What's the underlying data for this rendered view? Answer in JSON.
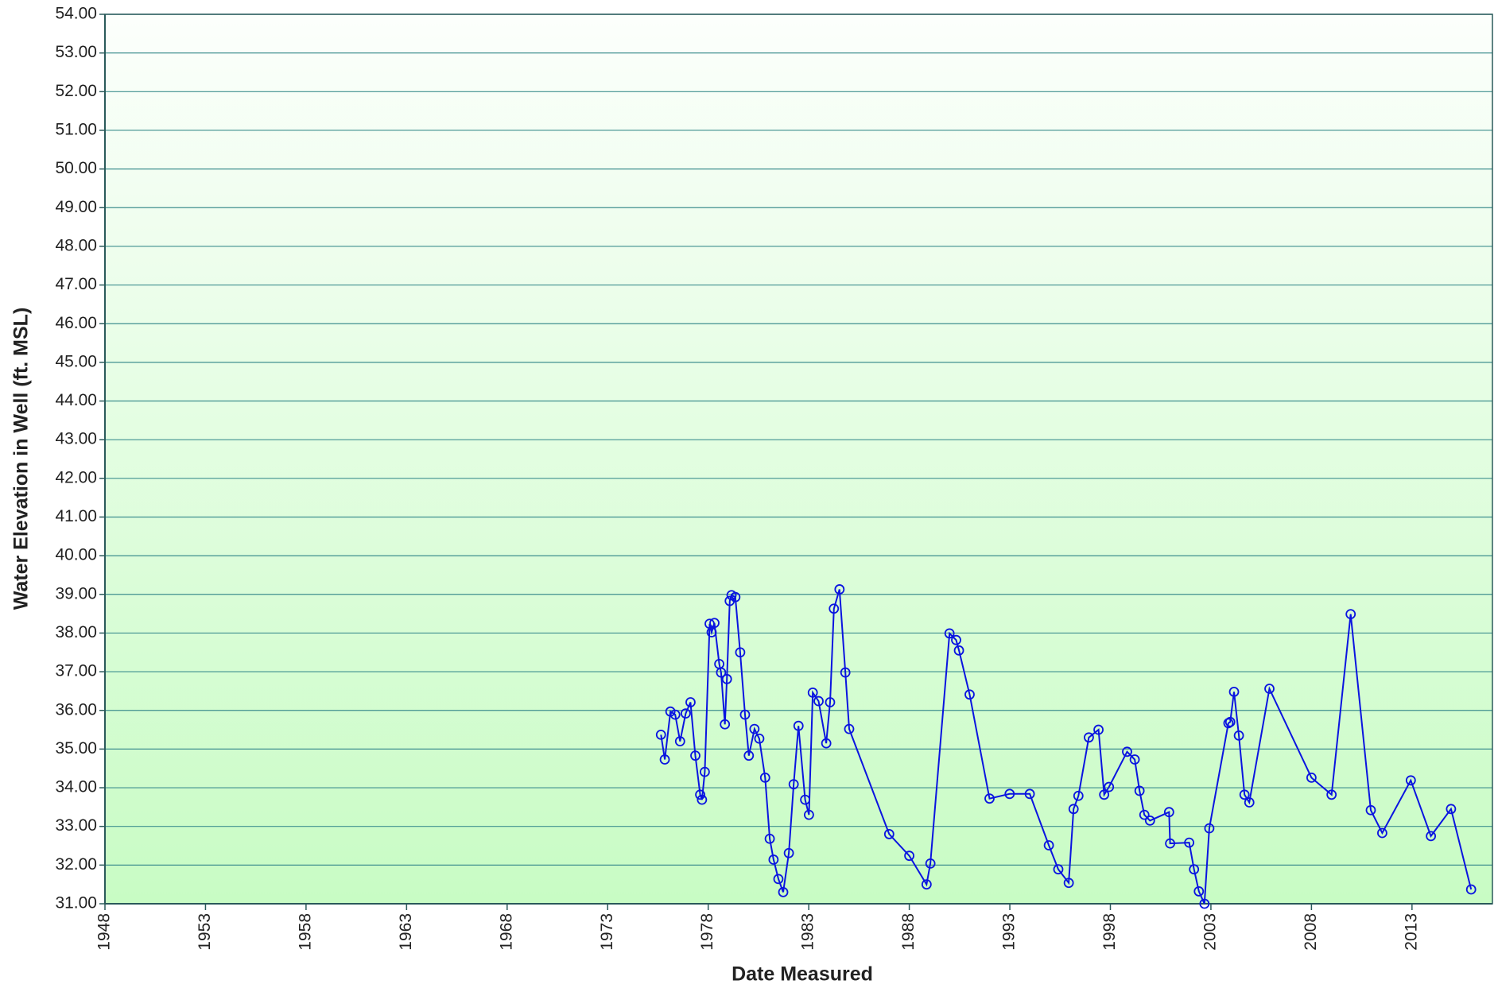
{
  "chart_data": {
    "type": "line",
    "x_label": "Date Measured",
    "y_label": "Water Elevation in Well (ft. MSL)",
    "xlim": [
      1948,
      2017
    ],
    "ylim": [
      31,
      54
    ],
    "xticks": [
      1948,
      1953,
      1958,
      1963,
      1968,
      1973,
      1978,
      1983,
      1988,
      1993,
      1998,
      2003,
      2008,
      2013
    ],
    "yticks": [
      {
        "value": 31,
        "label": "31.00"
      },
      {
        "value": 32,
        "label": "32.00"
      },
      {
        "value": 33,
        "label": "33.00"
      },
      {
        "value": 34,
        "label": "34.00"
      },
      {
        "value": 35,
        "label": "35.00"
      },
      {
        "value": 36,
        "label": "36.00"
      },
      {
        "value": 37,
        "label": "37.00"
      },
      {
        "value": 38,
        "label": "38.00"
      },
      {
        "value": 39,
        "label": "39.00"
      },
      {
        "value": 40,
        "label": "40.00"
      },
      {
        "value": 41,
        "label": "41.00"
      },
      {
        "value": 42,
        "label": "42.00"
      },
      {
        "value": 43,
        "label": "43.00"
      },
      {
        "value": 44,
        "label": "44.00"
      },
      {
        "value": 45,
        "label": "45.00"
      },
      {
        "value": 46,
        "label": "46.00"
      },
      {
        "value": 47,
        "label": "47.00"
      },
      {
        "value": 48,
        "label": "48.00"
      },
      {
        "value": 49,
        "label": "49.00"
      },
      {
        "value": 50,
        "label": "50.00"
      },
      {
        "value": 51,
        "label": "51.00"
      },
      {
        "value": 52,
        "label": "52.00"
      },
      {
        "value": 53,
        "label": "53.00"
      },
      {
        "value": 54,
        "label": "54.00"
      }
    ],
    "grid": true,
    "color": "#0a14e0",
    "x": [
      1975.65,
      1975.84,
      1976.12,
      1976.36,
      1976.6,
      1976.88,
      1977.12,
      1977.36,
      1977.6,
      1977.69,
      1977.83,
      1978.07,
      1978.17,
      1978.31,
      1978.55,
      1978.64,
      1978.83,
      1978.93,
      1979.07,
      1979.16,
      1979.35,
      1979.59,
      1979.83,
      1980.02,
      1980.3,
      1980.54,
      1980.83,
      1981.06,
      1981.25,
      1981.49,
      1981.73,
      1982.01,
      1982.25,
      1982.49,
      1982.82,
      1983.01,
      1983.2,
      1983.49,
      1983.87,
      1984.06,
      1984.25,
      1984.53,
      1984.82,
      1985.01,
      1987.0,
      1988.0,
      1988.86,
      1989.05,
      1990.0,
      1990.33,
      1990.47,
      1991.0,
      1991.99,
      1992.99,
      1993.99,
      1994.94,
      1995.41,
      1995.93,
      1996.17,
      1996.41,
      1996.93,
      1997.41,
      1997.69,
      1997.93,
      1998.83,
      1999.21,
      1999.45,
      1999.69,
      1999.97,
      2000.92,
      2000.97,
      2001.92,
      2002.16,
      2002.4,
      2002.68,
      2002.92,
      2003.87,
      2003.96,
      2004.15,
      2004.39,
      2004.67,
      2004.91,
      2005.91,
      2008.0,
      2009.0,
      2009.95,
      2010.95,
      2011.52,
      2012.94,
      2013.94,
      2014.94,
      2015.94
    ],
    "values": [
      35.37,
      34.73,
      35.97,
      35.89,
      35.2,
      35.92,
      36.21,
      34.83,
      33.82,
      33.69,
      34.41,
      38.24,
      38.02,
      38.26,
      37.2,
      36.98,
      35.64,
      36.81,
      38.83,
      38.98,
      38.93,
      37.5,
      35.89,
      34.83,
      35.52,
      35.27,
      34.26,
      32.68,
      32.14,
      31.64,
      31.3,
      32.31,
      34.09,
      35.6,
      33.69,
      33.3,
      36.46,
      36.24,
      35.15,
      36.21,
      38.63,
      39.13,
      36.98,
      35.52,
      32.8,
      32.24,
      31.5,
      32.04,
      37.99,
      37.82,
      37.55,
      36.41,
      33.72,
      33.84,
      33.84,
      32.51,
      31.89,
      31.54,
      33.45,
      33.79,
      35.3,
      35.5,
      33.82,
      34.02,
      34.93,
      34.73,
      33.92,
      33.3,
      33.15,
      33.37,
      32.56,
      32.58,
      31.89,
      31.32,
      31.0,
      32.95,
      35.67,
      35.7,
      36.48,
      35.35,
      33.82,
      33.62,
      36.56,
      34.26,
      33.82,
      38.49,
      33.42,
      32.83,
      34.19,
      32.75,
      33.45,
      31.37
    ]
  }
}
